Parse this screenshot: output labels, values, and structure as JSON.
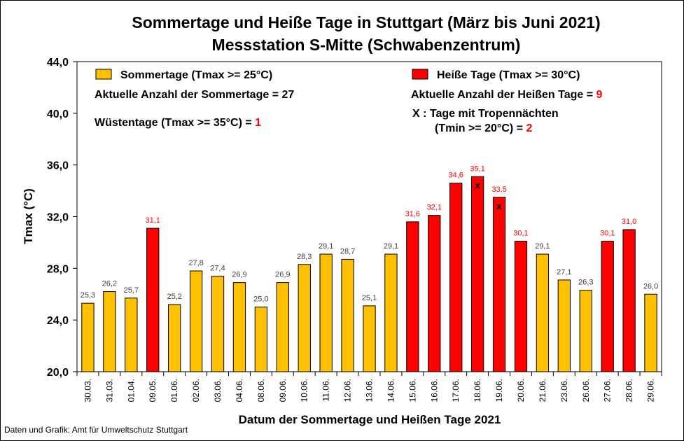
{
  "chart_data": {
    "type": "bar",
    "title_line1": "Sommertage und Heiße Tage in Stuttgart (März bis Juni 2021)",
    "title_line2": "Messstation S-Mitte (Schwabenzentrum)",
    "xlabel": "Datum der Sommertage und Heißen Tage 2021",
    "ylabel": "Tmax (°C)",
    "ylim": [
      20,
      44
    ],
    "yticks": [
      "20,0",
      "24,0",
      "28,0",
      "32,0",
      "36,0",
      "40,0",
      "44,0"
    ],
    "ytick_values": [
      20,
      24,
      28,
      32,
      36,
      40,
      44
    ],
    "grid": false,
    "categories": [
      "30.03.",
      "31.03.",
      "01.04.",
      "09.05.",
      "01.06.",
      "02.06.",
      "03.06.",
      "04.06.",
      "08.06.",
      "09.06.",
      "10.06.",
      "11.06.",
      "12.06.",
      "13.06.",
      "14.06.",
      "15.06.",
      "16.06.",
      "17.06.",
      "18.06.",
      "19.06.",
      "20.06.",
      "21.06.",
      "23.06.",
      "26.06.",
      "27.06.",
      "28.06.",
      "29.06."
    ],
    "values": [
      25.3,
      26.2,
      25.7,
      31.1,
      25.2,
      27.8,
      27.4,
      26.9,
      25.0,
      26.9,
      28.3,
      29.1,
      28.7,
      25.1,
      29.1,
      31.6,
      32.1,
      34.6,
      35.1,
      33.5,
      30.1,
      29.1,
      27.1,
      26.3,
      30.1,
      31.0,
      26.0
    ],
    "value_labels": [
      "25,3",
      "26,2",
      "25,7",
      "31,1",
      "25,2",
      "27,8",
      "27,4",
      "26,9",
      "25,0",
      "26,9",
      "28,3",
      "29,1",
      "28,7",
      "25,1",
      "29,1",
      "31,6",
      "32,1",
      "34,6",
      "35,1",
      "33,5",
      "30,1",
      "29,1",
      "27,1",
      "26,3",
      "30,1",
      "31,0",
      "26,0"
    ],
    "tropical_night_markers": [
      "18.06.",
      "19.06."
    ],
    "marker_symbol": "x",
    "series": [
      {
        "name": "Sommertage (Tmax >= 25°C)",
        "color": "#ffc000",
        "rule": "Tmax >= 25"
      },
      {
        "name": "Heiße Tage (Tmax >= 30°C)",
        "color": "#ff0000",
        "rule": "Tmax >= 30"
      }
    ],
    "legend_position": "top"
  },
  "legend": {
    "summer_label": "Sommertage (Tmax >= 25°C)",
    "summer_count_text": "Aktuelle Anzahl der Sommertage = 27",
    "desert_text": "Wüstentage (Tmax >= 35°C) = ",
    "desert_count": "1",
    "hot_label": "Heiße Tage (Tmax >= 30°C)",
    "hot_count_text": "Aktuelle Anzahl der Heißen Tage = ",
    "hot_count": "9",
    "tropical_line1": "X : Tage mit Tropennächten",
    "tropical_line2": "(Tmin >= 20°C) = ",
    "tropical_count": "2"
  },
  "footer": {
    "source": "Daten und Grafik: Amt für Umweltschutz Stuttgart"
  },
  "colors": {
    "summer": "#ffc000",
    "hot": "#ff0000",
    "label_summer": "#404040",
    "label_hot": "#ff0000"
  }
}
